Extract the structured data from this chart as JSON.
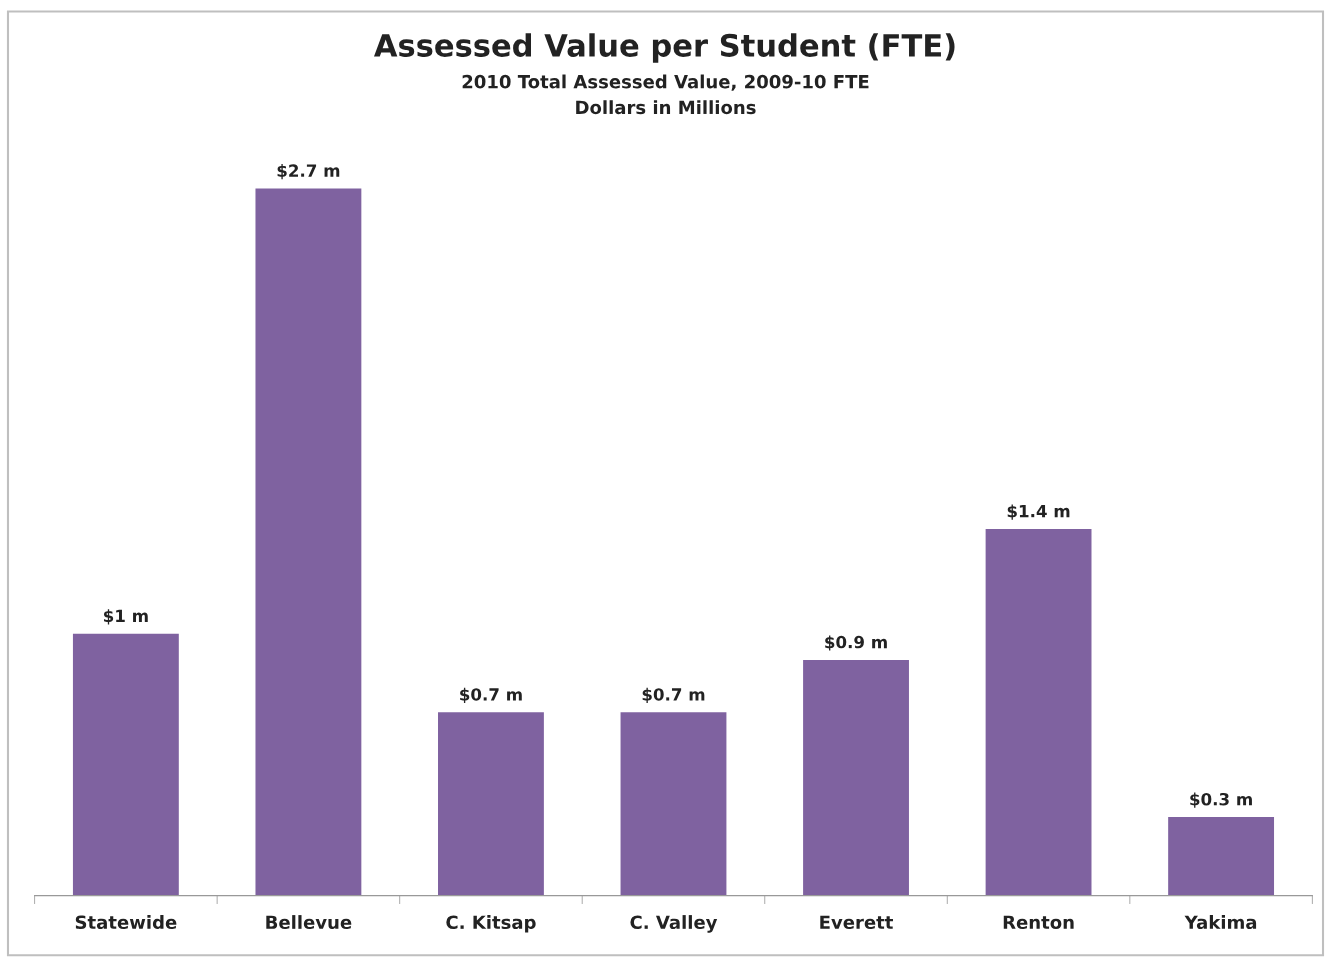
{
  "chart_data": {
    "type": "bar",
    "title": "Assessed Value per Student (FTE)",
    "subtitle": "2010 Total Assessed Value, 2009-10 FTE\nDollars in Millions",
    "categories": [
      "Statewide",
      "Bellevue",
      "C. Kitsap",
      "C. Valley",
      "Everett",
      "Renton",
      "Yakima"
    ],
    "values": [
      1,
      2.7,
      0.7,
      0.7,
      0.9,
      1.4,
      0.3
    ],
    "value_labels": [
      "$1 m",
      "$2.7 m",
      "$0.7 m",
      "$0.7 m",
      "$0.9 m",
      "$1.4 m",
      "$0.3 m"
    ],
    "color": "#7f62a0",
    "grid": false,
    "legend": false
  }
}
